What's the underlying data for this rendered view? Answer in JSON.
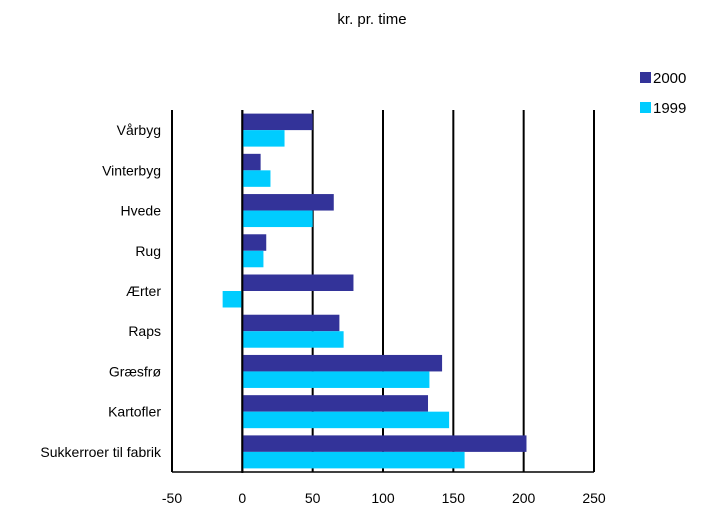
{
  "chart_data": {
    "type": "bar",
    "orientation": "horizontal",
    "title": "kr. pr. time",
    "xlabel": "",
    "ylabel": "",
    "categories": [
      "Vårbyg",
      "Vinterbyg",
      "Hvede",
      "Rug",
      "Ærter",
      "Raps",
      "Græsfrø",
      "Kartofler",
      "Sukkerroer til fabrik"
    ],
    "series": [
      {
        "name": "2000",
        "color": "#333399",
        "values": [
          50,
          13,
          65,
          17,
          79,
          69,
          142,
          132,
          202
        ]
      },
      {
        "name": "1999",
        "color": "#00ccff",
        "values": [
          30,
          20,
          50,
          15,
          -14,
          72,
          133,
          147,
          158
        ]
      }
    ],
    "xlim": [
      -50,
      250
    ],
    "x_ticks": [
      -50,
      0,
      50,
      100,
      150,
      200,
      250
    ],
    "x_tick_labels": [
      "-50",
      "0",
      "50",
      "100",
      "150",
      "200",
      "250"
    ],
    "grid": "vertical",
    "legend_position": "top-right"
  }
}
